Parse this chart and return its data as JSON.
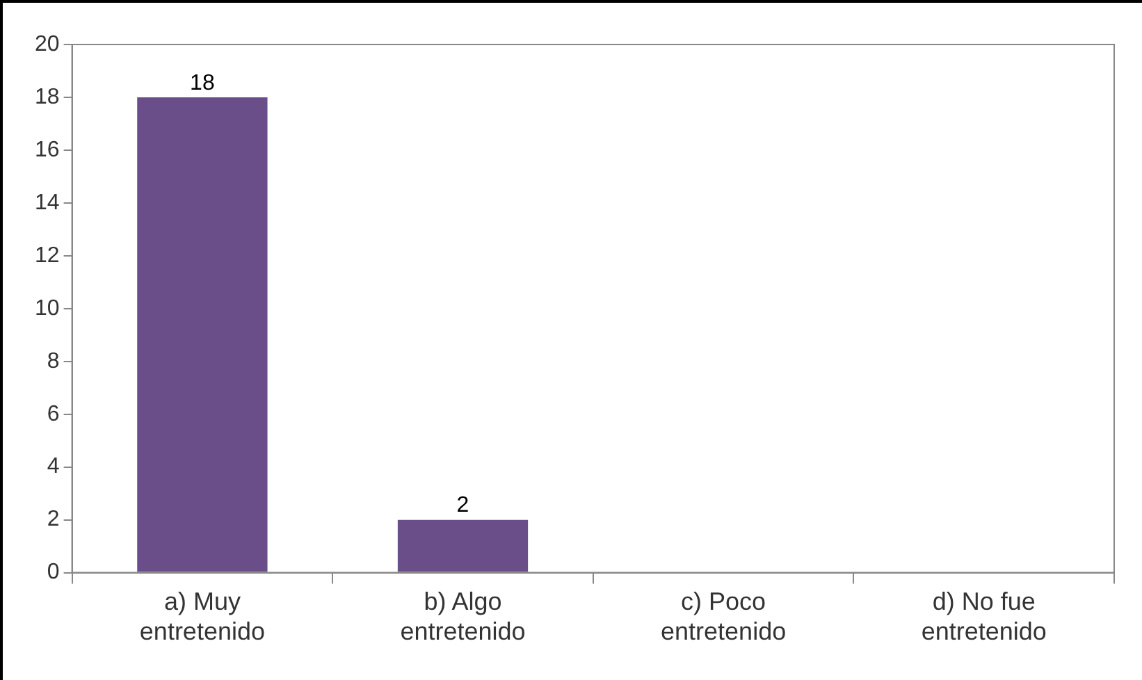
{
  "chart_data": {
    "type": "bar",
    "categories": [
      "a) Muy entretenido",
      "b) Algo entretenido",
      "c) Poco entretenido",
      "d) No fue entretenido"
    ],
    "values": [
      18,
      2,
      0,
      0
    ],
    "value_labels": [
      "18",
      "2",
      null,
      null
    ],
    "color": "#6a4e8a",
    "ylim": [
      0,
      20
    ],
    "yticks": [
      0,
      2,
      4,
      6,
      8,
      10,
      12,
      14,
      16,
      18,
      20
    ],
    "grid": false,
    "legend": false
  }
}
